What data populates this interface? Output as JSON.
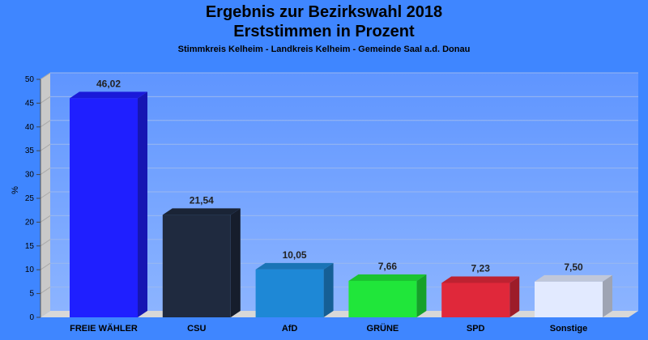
{
  "chart_data": {
    "type": "bar",
    "title": "Ergebnis zur Bezirkswahl 2018",
    "title2": "Erststimmen in Prozent",
    "subtitle": "Stimmkreis Kelheim - Landkreis Kelheim - Gemeinde Saal a.d. Donau",
    "ylabel": "%",
    "ylim": [
      0,
      50
    ],
    "yticks": [
      "0",
      "5",
      "10",
      "15",
      "20",
      "25",
      "30",
      "35",
      "40",
      "45",
      "50"
    ],
    "categories": [
      "FREIE WÄHLER",
      "CSU",
      "AfD",
      "GRÜNE",
      "SPD",
      "Sonstige"
    ],
    "values": [
      46.02,
      21.54,
      10.05,
      7.66,
      7.23,
      7.5
    ],
    "value_labels": [
      "46,02",
      "21,54",
      "10,05",
      "7,66",
      "7,23",
      "7,50"
    ],
    "colors": [
      "#1f1fff",
      "#1f2a3f",
      "#1e88d6",
      "#20e63a",
      "#e0283a",
      "#e2eaff"
    ],
    "grid": true
  }
}
